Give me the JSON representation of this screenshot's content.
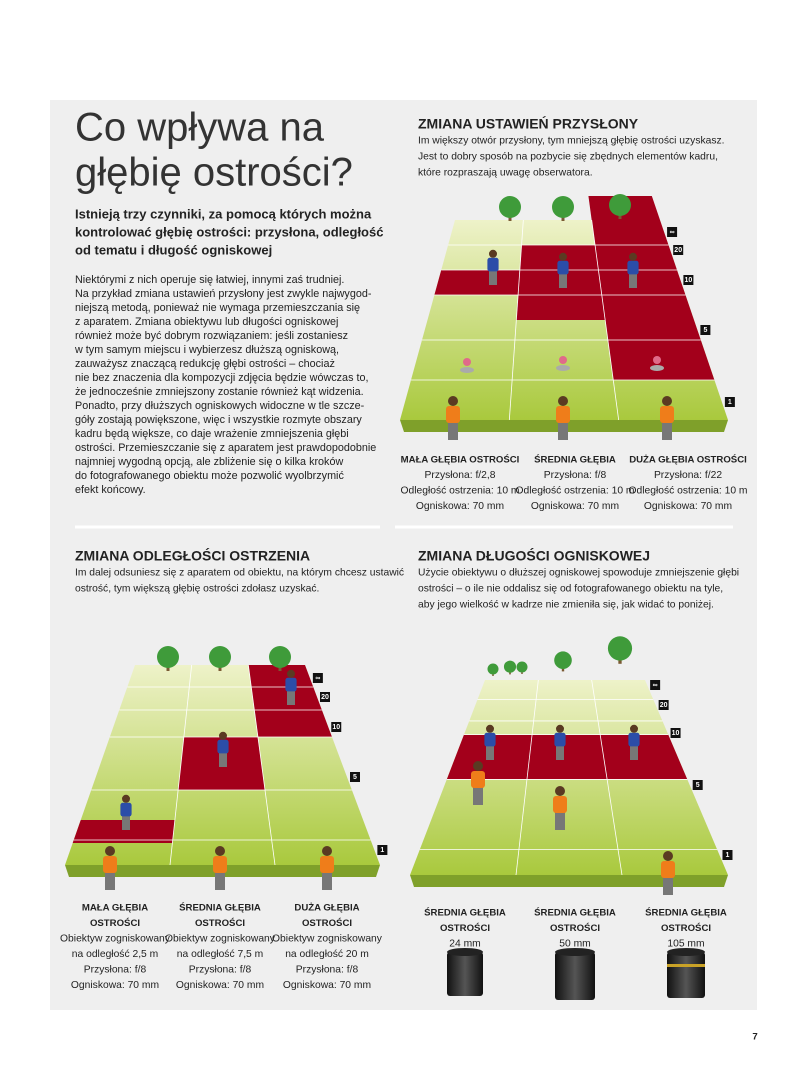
{
  "page_number": "7",
  "intro": {
    "title_lines": [
      "Co wpływa na",
      "głębię ostrości?"
    ],
    "lead_lines": [
      "Istnieją trzy czynniki, za pomocą których można",
      "kontrolować głębię ostrości: przysłona, odległość",
      "od tematu i długość ogniskowej"
    ],
    "body_lines": [
      "Niektórymi z nich operuje się łatwiej, innymi zaś trudniej.",
      "Na przykład zmiana ustawień przysłony jest zwykle najwygod-",
      "niejszą metodą, ponieważ nie wymaga przemieszczania się",
      "z aparatem. Zmiana obiektywu lub długości ogniskowej",
      "również może być dobrym rozwiązaniem: jeśli zostaniesz",
      "w tym samym miejscu i wybierzesz dłuższą ogniskową,",
      "zauważysz znaczącą redukcję głębi ostrości – chociaż",
      "nie bez znaczenia dla kompozycji zdjęcia będzie wówczas to,",
      "że jednocześnie zmniejszony zostanie również kąt widzenia.",
      "Ponadto, przy dłuższych ogniskowych widoczne w tle szcze-",
      "góły zostają powiększone, więc i wszystkie rozmyte obszary",
      "kadru będą większe, co daje wrażenie zmniejszenia głębi",
      "ostrości. Przemieszczanie się z aparatem jest prawdopodobnie",
      "najmniej wygodną opcją, ale zbliżenie się o kilka kroków",
      "do fotografowanego obiektu może pozwolić wyolbrzymić",
      "efekt końcowy."
    ]
  },
  "sections": [
    {
      "heading": "ZMIANA USTAWIEŃ PRZYSŁONY",
      "intro_lines": [
        "Im większy otwór przysłony, tym mniejszą głębię ostrości uzyskasz.",
        "Jest to dobry sposób na pozbycie się zbędnych elementów kadru,",
        "które rozpraszają uwagę obserwatora."
      ],
      "markers": [
        "∞",
        "20",
        "10",
        "5",
        "1"
      ],
      "columns": [
        {
          "label_lines": [
            "MAŁA GŁĘBIA OSTROŚCI"
          ],
          "lines": [
            "Przysłona: f/2,8",
            "Odległość ostrzenia: 10 m",
            "Ogniskowa: 70 mm"
          ]
        },
        {
          "label_lines": [
            "ŚREDNIA GŁĘBIA"
          ],
          "lines": [
            "Przysłona: f/8",
            "Odległość ostrzenia: 10 m",
            "Ogniskowa: 70 mm"
          ]
        },
        {
          "label_lines": [
            "DUŻA GŁĘBIA OSTROŚCI"
          ],
          "lines": [
            "Przysłona: f/22",
            "Odległość ostrzenia: 10 m",
            "Ogniskowa: 70 mm"
          ]
        }
      ]
    },
    {
      "heading": "ZMIANA ODLEGŁOŚCI OSTRZENIA",
      "intro_lines": [
        "Im dalej odsuniesz się z aparatem od obiektu, na którym chcesz ustawić",
        "ostrość, tym większą głębię ostrości zdołasz uzyskać."
      ],
      "markers": [
        "∞",
        "20",
        "10",
        "5",
        "1"
      ],
      "columns": [
        {
          "label_lines": [
            "MAŁA GŁĘBIA",
            "OSTROŚCI"
          ],
          "lines": [
            "Obiektyw zogniskowany",
            "na odległość 2,5 m",
            "Przysłona: f/8",
            "Ogniskowa: 70 mm"
          ]
        },
        {
          "label_lines": [
            "ŚREDNIA GŁĘBIA",
            "OSTROŚCI"
          ],
          "lines": [
            "Obiektyw zogniskowany",
            "na odległość 7,5 m",
            "Przysłona: f/8",
            "Ogniskowa: 70 mm"
          ]
        },
        {
          "label_lines": [
            "DUŻA GŁĘBIA",
            "OSTROŚCI"
          ],
          "lines": [
            "Obiektyw zogniskowany",
            "na odległość 20 m",
            "Przysłona: f/8",
            "Ogniskowa: 70 mm"
          ]
        }
      ]
    },
    {
      "heading": "ZMIANA DŁUGOŚCI OGNISKOWEJ",
      "intro_lines": [
        "Użycie obiektywu o dłuższej ogniskowej spowoduje zmniejszenie głębi",
        "ostrości – o ile nie oddalisz się od fotografowanego obiektu na tyle,",
        "aby jego wielkość w kadrze nie zmieniła się, jak widać to poniżej."
      ],
      "markers": [
        "∞",
        "20",
        "10",
        "5",
        "1"
      ],
      "columns": [
        {
          "label_lines": [
            "ŚREDNIA GŁĘBIA",
            "OSTROŚCI"
          ],
          "lines": [
            "24 mm"
          ]
        },
        {
          "label_lines": [
            "ŚREDNIA GŁĘBIA",
            "OSTROŚCI"
          ],
          "lines": [
            "50 mm"
          ]
        },
        {
          "label_lines": [
            "ŚREDNIA GŁĘBIA",
            "OSTROŚCI"
          ],
          "lines": [
            "105 mm"
          ]
        }
      ]
    }
  ]
}
